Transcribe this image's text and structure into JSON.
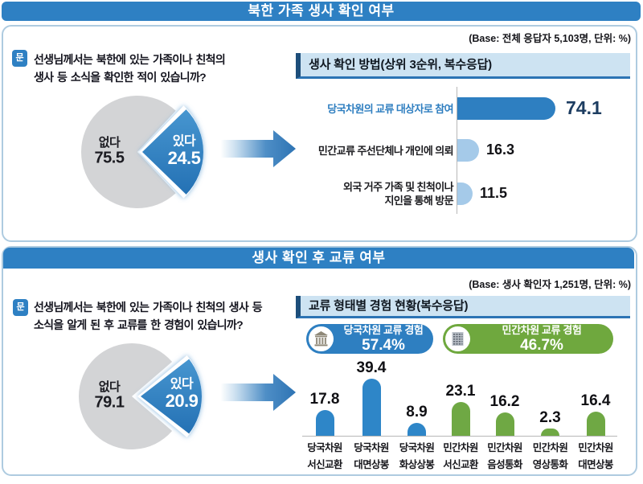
{
  "title_bar_1": {
    "label": "북한 가족 생사 확인 여부"
  },
  "title_bar_2": {
    "label": "생사 확인 후 교류 여부"
  },
  "panel1": {
    "base_note": "(Base: 전체 응답자 5,103명, 단위: %)",
    "question_marker": "문",
    "question_lines": [
      "선생님께서는 북한에 있는 가족이나 친척의",
      "생사 등 소식을 확인한 적이 있습니까?"
    ],
    "section_title": "생사 확인 방법(상위 3순위, 복수응답)"
  },
  "panel2": {
    "base_note": "(Base: 생사 확인자 1,251명, 단위: %)",
    "question_marker": "문",
    "question_lines": [
      "선생님께서는 북한에 있는 가족이나 친척의 생사 등",
      "소식을 알게 된 후 교류를 한 경험이 있습니까?"
    ],
    "section_title": "교류 형태별 경험 현황(복수응답)",
    "badges": [
      {
        "label": "당국차원 교류 경험",
        "value": "57.4%",
        "color": "#2E7FC1",
        "icon": "government-building-icon"
      },
      {
        "label": "민간차원 교류 경험",
        "value": "46.7%",
        "color": "#6FA83E",
        "icon": "apartment-building-icon"
      }
    ]
  },
  "colors": {
    "header_blue": "#2E80C3",
    "panel_border": "#AECBE0",
    "section_header_bg": "#CDE3F2",
    "section_header_accent": "#1D4E7A",
    "section_header_underline": "#2C74B4",
    "pie_gray": "#D3D4D6",
    "pie_blue": "#2E7FC1",
    "bar_dark_blue": "#2E7FC1",
    "bar_light_blue": "#A5CAE9",
    "bar_green": "#6FA844",
    "badge_blue": "#2E7FC1",
    "badge_green": "#6FA83E",
    "arrow_blue": "#2E74B4"
  },
  "chart_data": [
    {
      "id": "survival-check-pie",
      "type": "pie",
      "panel": 1,
      "title": "북한 가족 생사 확인 여부",
      "slices": [
        {
          "label": "없다",
          "value": 75.5,
          "color": "#D3D4D6"
        },
        {
          "label": "있다",
          "value": 24.5,
          "color": "#2E7FC1"
        }
      ],
      "unit": "%",
      "legend_position": "inside"
    },
    {
      "id": "check-methods-bars",
      "type": "bar",
      "orientation": "horizontal",
      "panel": 1,
      "title": "생사 확인 방법(상위 3순위, 복수응답)",
      "categories": [
        [
          "당국차원의 교류 대상자로 참여"
        ],
        [
          "민간교류 주선단체나 개인에 의뢰"
        ],
        [
          "외국 거주 가족 및 친척이나",
          "지인을 통해 방문"
        ]
      ],
      "values": [
        74.1,
        16.3,
        11.5
      ],
      "bar_colors": [
        "#2E7FC1",
        "#A5CAE9",
        "#A5CAE9"
      ],
      "category_colors": [
        "#2E7EC0",
        "#1B1B1F",
        "#1B1B1F"
      ],
      "value_colors": [
        "#1D3D61",
        "#121216",
        "#121216"
      ],
      "value_sizes": [
        23,
        18,
        18
      ],
      "xlim": [
        0,
        80
      ],
      "unit": "%",
      "grid": false
    },
    {
      "id": "exchange-pie",
      "type": "pie",
      "panel": 2,
      "title": "생사 확인 후 교류 여부",
      "slices": [
        {
          "label": "없다",
          "value": 79.1,
          "color": "#D3D4D6"
        },
        {
          "label": "있다",
          "value": 20.9,
          "color": "#2E7FC1"
        }
      ],
      "unit": "%",
      "legend_position": "inside"
    },
    {
      "id": "exchange-types-bars",
      "type": "bar",
      "orientation": "vertical",
      "panel": 2,
      "title": "교류 형태별 경험 현황(복수응답)",
      "categories": [
        [
          "당국차원",
          "서신교환"
        ],
        [
          "당국차원",
          "대면상봉"
        ],
        [
          "당국차원",
          "화상상봉"
        ],
        [
          "민간차원",
          "서신교환"
        ],
        [
          "민간차원",
          "음성통화"
        ],
        [
          "민간차원",
          "영상통화"
        ],
        [
          "민간차원",
          "대면상봉"
        ]
      ],
      "values": [
        17.8,
        39.4,
        8.9,
        23.1,
        16.2,
        2.3,
        16.4
      ],
      "bar_colors": [
        "#2E86C8",
        "#2E86C8",
        "#2E86C8",
        "#6FA844",
        "#6FA844",
        "#6FA844",
        "#6FA844"
      ],
      "ylim": [
        0,
        45
      ],
      "unit": "%",
      "grid": false
    }
  ]
}
